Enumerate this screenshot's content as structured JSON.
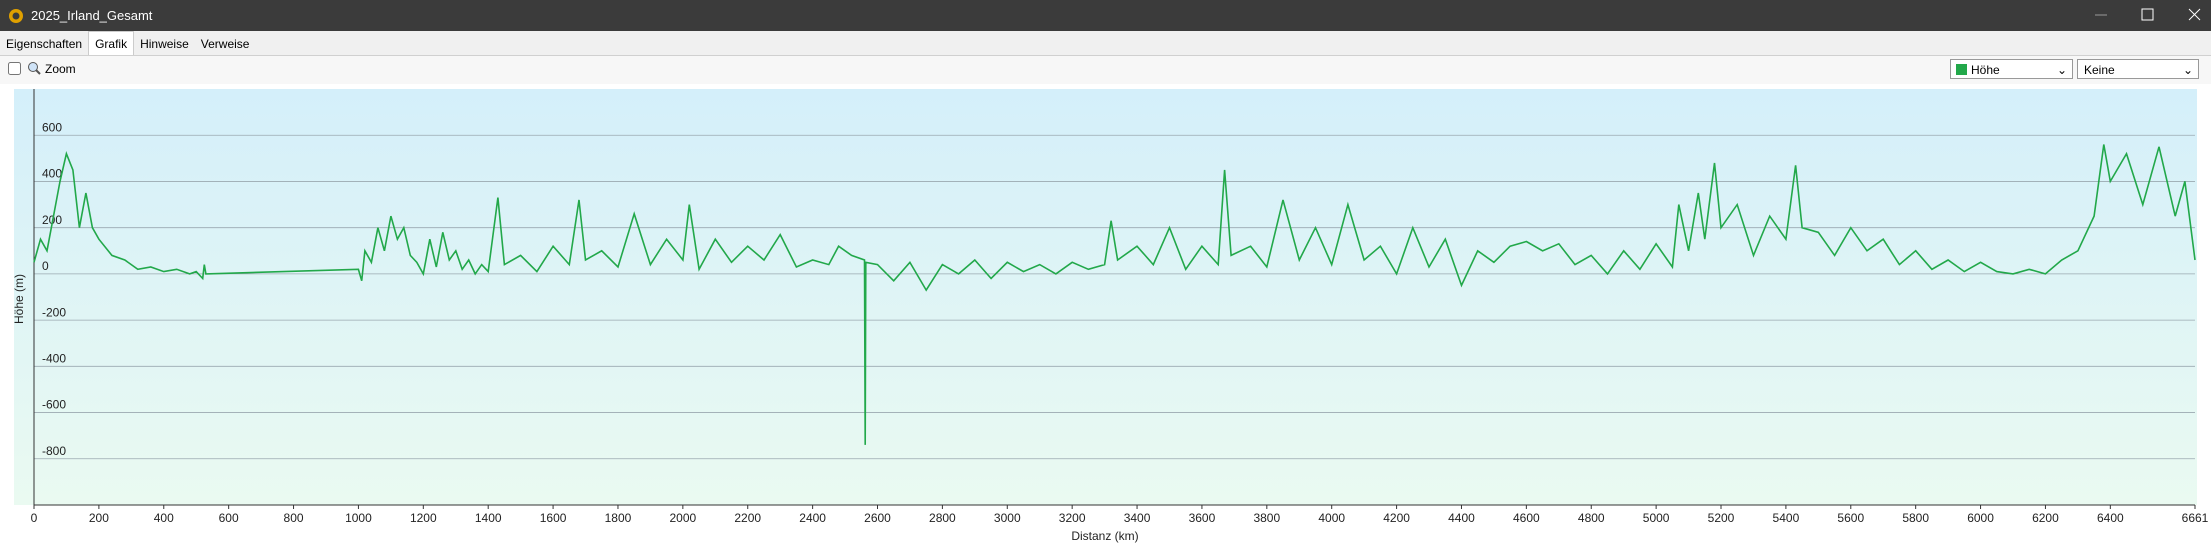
{
  "window": {
    "title": "2025_Irland_Gesamt"
  },
  "tabs": [
    "Eigenschaften",
    "Grafik",
    "Hinweise",
    "Verweise"
  ],
  "toolbar": {
    "zoom": "Zoom",
    "overlay": "Keine"
  },
  "chart_data": {
    "type": "line",
    "xlabel": "Distanz  (km)",
    "ylabel": "Höhe (m)",
    "xlim": [
      0,
      6661
    ],
    "ylim": [
      -1000,
      800
    ],
    "xticks": [
      0,
      200,
      400,
      600,
      800,
      1000,
      1200,
      1400,
      1600,
      1800,
      2000,
      2200,
      2400,
      2600,
      2800,
      3000,
      3200,
      3400,
      3600,
      3800,
      4000,
      4200,
      4400,
      4600,
      4800,
      5000,
      5200,
      5400,
      5600,
      5800,
      6000,
      6200,
      6400,
      6661
    ],
    "yticks": [
      -800,
      -600,
      -400,
      -200,
      0,
      200,
      400,
      600
    ],
    "grid": true,
    "x": [
      0,
      20,
      40,
      60,
      80,
      100,
      120,
      140,
      160,
      180,
      200,
      240,
      280,
      320,
      360,
      400,
      440,
      480,
      500,
      520,
      525,
      530,
      1000,
      1010,
      1020,
      1040,
      1060,
      1080,
      1100,
      1120,
      1140,
      1160,
      1180,
      1200,
      1220,
      1240,
      1260,
      1280,
      1300,
      1320,
      1340,
      1360,
      1380,
      1400,
      1430,
      1450,
      1500,
      1550,
      1600,
      1650,
      1680,
      1700,
      1750,
      1800,
      1850,
      1900,
      1950,
      2000,
      2020,
      2050,
      2100,
      2150,
      2200,
      2250,
      2300,
      2350,
      2400,
      2450,
      2480,
      2520,
      2560,
      2562,
      2564,
      2600,
      2650,
      2700,
      2750,
      2800,
      2850,
      2900,
      2950,
      3000,
      3050,
      3100,
      3150,
      3200,
      3250,
      3300,
      3320,
      3340,
      3400,
      3450,
      3500,
      3550,
      3600,
      3650,
      3670,
      3690,
      3750,
      3800,
      3850,
      3900,
      3950,
      4000,
      4050,
      4100,
      4150,
      4200,
      4250,
      4300,
      4350,
      4400,
      4450,
      4500,
      4550,
      4600,
      4650,
      4700,
      4750,
      4800,
      4850,
      4900,
      4950,
      5000,
      5050,
      5070,
      5100,
      5130,
      5150,
      5180,
      5200,
      5250,
      5300,
      5350,
      5400,
      5430,
      5450,
      5500,
      5550,
      5600,
      5650,
      5700,
      5750,
      5800,
      5850,
      5900,
      5950,
      6000,
      6050,
      6100,
      6150,
      6200,
      6250,
      6300,
      6350,
      6380,
      6400,
      6450,
      6500,
      6550,
      6600,
      6630,
      6661
    ],
    "series": [
      {
        "name": "Höhe",
        "color": "#22a84a",
        "values": [
          50,
          150,
          100,
          250,
          400,
          520,
          450,
          200,
          350,
          200,
          150,
          80,
          60,
          20,
          30,
          10,
          20,
          0,
          10,
          -20,
          40,
          0,
          20,
          -30,
          100,
          50,
          200,
          100,
          250,
          150,
          200,
          80,
          50,
          0,
          150,
          30,
          180,
          60,
          100,
          20,
          60,
          0,
          40,
          10,
          330,
          40,
          80,
          10,
          120,
          40,
          320,
          60,
          100,
          30,
          260,
          40,
          150,
          60,
          300,
          20,
          150,
          50,
          120,
          60,
          170,
          30,
          60,
          40,
          120,
          80,
          60,
          -740,
          50,
          40,
          -30,
          50,
          -70,
          40,
          0,
          60,
          -20,
          50,
          10,
          40,
          0,
          50,
          20,
          40,
          230,
          60,
          120,
          40,
          200,
          20,
          120,
          40,
          450,
          80,
          120,
          30,
          320,
          60,
          200,
          40,
          300,
          60,
          120,
          0,
          200,
          30,
          150,
          -50,
          100,
          50,
          120,
          140,
          100,
          130,
          40,
          80,
          0,
          100,
          20,
          130,
          30,
          300,
          100,
          350,
          150,
          480,
          200,
          300,
          80,
          250,
          150,
          470,
          200,
          180,
          80,
          200,
          100,
          150,
          40,
          100,
          20,
          60,
          10,
          50,
          10,
          0,
          20,
          0,
          60,
          100,
          250,
          560,
          400,
          520,
          300,
          550,
          250,
          400,
          60
        ]
      }
    ]
  }
}
